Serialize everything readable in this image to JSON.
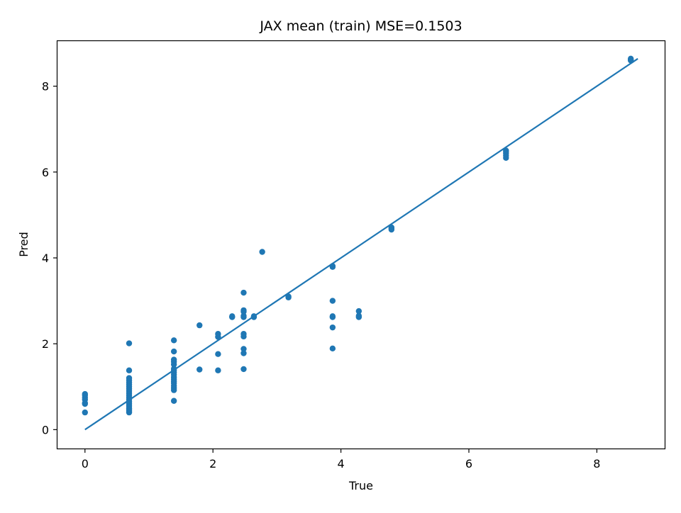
{
  "chart_data": {
    "type": "scatter",
    "title": "JAX mean (train) MSE=0.1503",
    "xlabel": "True",
    "ylabel": "Pred",
    "xlim": [
      -0.43,
      9.06
    ],
    "ylim": [
      -0.44,
      9.05
    ],
    "xticks": [
      0,
      2,
      4,
      6,
      8
    ],
    "yticks": [
      0,
      2,
      4,
      6,
      8
    ],
    "grid": false,
    "color": "#1f77b4",
    "series": [
      {
        "type": "scatter",
        "points": [
          [
            0,
            0.4
          ],
          [
            0,
            0.6
          ],
          [
            0,
            0.62
          ],
          [
            0,
            0.7
          ],
          [
            0,
            0.75
          ],
          [
            0,
            0.8
          ],
          [
            0,
            0.83
          ],
          [
            0.69,
            0.4
          ],
          [
            0.69,
            0.42
          ],
          [
            0.69,
            0.45
          ],
          [
            0.69,
            0.48
          ],
          [
            0.69,
            0.5
          ],
          [
            0.69,
            0.55
          ],
          [
            0.69,
            0.6
          ],
          [
            0.69,
            0.65
          ],
          [
            0.69,
            0.7
          ],
          [
            0.69,
            0.75
          ],
          [
            0.69,
            0.8
          ],
          [
            0.69,
            0.85
          ],
          [
            0.69,
            0.9
          ],
          [
            0.69,
            0.95
          ],
          [
            0.69,
            1.0
          ],
          [
            0.69,
            1.05
          ],
          [
            0.69,
            1.1
          ],
          [
            0.69,
            1.15
          ],
          [
            0.69,
            1.2
          ],
          [
            0.69,
            1.38
          ],
          [
            0.69,
            2.01
          ],
          [
            1.39,
            0.67
          ],
          [
            1.39,
            0.92
          ],
          [
            1.39,
            0.97
          ],
          [
            1.39,
            1.02
          ],
          [
            1.39,
            1.08
          ],
          [
            1.39,
            1.12
          ],
          [
            1.39,
            1.17
          ],
          [
            1.39,
            1.22
          ],
          [
            1.39,
            1.28
          ],
          [
            1.39,
            1.33
          ],
          [
            1.39,
            1.38
          ],
          [
            1.39,
            1.42
          ],
          [
            1.39,
            1.52
          ],
          [
            1.39,
            1.58
          ],
          [
            1.39,
            1.63
          ],
          [
            1.39,
            1.82
          ],
          [
            1.39,
            2.08
          ],
          [
            1.79,
            1.4
          ],
          [
            1.79,
            2.43
          ],
          [
            2.08,
            1.38
          ],
          [
            2.08,
            1.76
          ],
          [
            2.08,
            2.16
          ],
          [
            2.08,
            2.23
          ],
          [
            2.3,
            2.62
          ],
          [
            2.3,
            2.64
          ],
          [
            2.48,
            1.41
          ],
          [
            2.48,
            1.78
          ],
          [
            2.48,
            1.88
          ],
          [
            2.48,
            2.17
          ],
          [
            2.48,
            2.23
          ],
          [
            2.48,
            2.62
          ],
          [
            2.48,
            2.65
          ],
          [
            2.48,
            2.75
          ],
          [
            2.48,
            2.78
          ],
          [
            2.48,
            3.19
          ],
          [
            2.64,
            2.62
          ],
          [
            2.64,
            2.64
          ],
          [
            2.77,
            4.14
          ],
          [
            3.18,
            3.08
          ],
          [
            3.18,
            3.1
          ],
          [
            3.87,
            1.89
          ],
          [
            3.87,
            2.38
          ],
          [
            3.87,
            2.62
          ],
          [
            3.87,
            2.64
          ],
          [
            3.87,
            3.0
          ],
          [
            3.87,
            3.79
          ],
          [
            3.87,
            3.81
          ],
          [
            4.28,
            2.62
          ],
          [
            4.28,
            2.65
          ],
          [
            4.28,
            2.76
          ],
          [
            4.79,
            4.66
          ],
          [
            4.79,
            4.69
          ],
          [
            4.79,
            4.71
          ],
          [
            6.58,
            6.33
          ],
          [
            6.58,
            6.38
          ],
          [
            6.58,
            6.43
          ],
          [
            6.58,
            6.47
          ],
          [
            6.58,
            6.5
          ],
          [
            8.53,
            8.6
          ],
          [
            8.53,
            8.62
          ],
          [
            8.53,
            8.64
          ]
        ]
      },
      {
        "type": "line",
        "points": [
          [
            0,
            0
          ],
          [
            8.64,
            8.64
          ]
        ]
      }
    ]
  }
}
